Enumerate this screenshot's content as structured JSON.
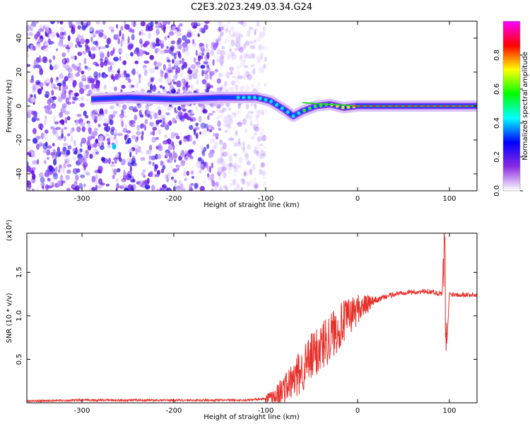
{
  "title": "C2E3.2023.249.03.34.G24",
  "chart_data": [
    {
      "type": "heatmap",
      "xlabel": "Height of straight line (km)",
      "ylabel": "Frequency (Hz)",
      "xlim": [
        -360,
        130
      ],
      "ylim": [
        -50,
        50
      ],
      "xticks": [
        -300,
        -200,
        -100,
        0,
        100
      ],
      "yticks": [
        -40,
        -20,
        0,
        20,
        40
      ],
      "colorbar": {
        "label": "Normalized spectral amplitude",
        "range": [
          0.0,
          1.0
        ],
        "ticks": [
          "0.0",
          "0.2",
          "0.4",
          "0.6",
          "0.8"
        ],
        "colors": [
          "#ffffff",
          "#8a2be2",
          "#0000ff",
          "#00ffff",
          "#00ff00",
          "#ffff00",
          "#ff0000",
          "#ff00ff"
        ]
      },
      "noise_field_extent": [
        -360,
        -110
      ],
      "signal_line": [
        {
          "x": -290,
          "y": 4
        },
        {
          "x": -250,
          "y": 5
        },
        {
          "x": -200,
          "y": 4
        },
        {
          "x": -150,
          "y": 5
        },
        {
          "x": -110,
          "y": 5
        },
        {
          "x": -95,
          "y": 3
        },
        {
          "x": -80,
          "y": -2
        },
        {
          "x": -70,
          "y": -6
        },
        {
          "x": -60,
          "y": -3
        },
        {
          "x": -45,
          "y": 0
        },
        {
          "x": -30,
          "y": 1
        },
        {
          "x": -15,
          "y": -1
        },
        {
          "x": 0,
          "y": 0
        },
        {
          "x": 50,
          "y": 0
        },
        {
          "x": 90,
          "y": 0
        },
        {
          "x": 130,
          "y": 0
        }
      ]
    },
    {
      "type": "line",
      "xlabel": "Height of straight line (km)",
      "ylabel": "SNR (10 * v/v)",
      "yscale_label": "(x10⁴)",
      "xlim": [
        -360,
        130
      ],
      "ylim": [
        0,
        1.95
      ],
      "xticks": [
        -300,
        -200,
        -100,
        0,
        100
      ],
      "yticks": [
        0.5,
        1.0,
        1.5
      ],
      "color": "#e8302a",
      "series": [
        {
          "values": [
            {
              "x": -360,
              "y": 0.02
            },
            {
              "x": -300,
              "y": 0.03
            },
            {
              "x": -200,
              "y": 0.03
            },
            {
              "x": -120,
              "y": 0.03
            },
            {
              "x": -100,
              "y": 0.05
            },
            {
              "x": -85,
              "y": 0.12
            },
            {
              "x": -70,
              "y": 0.25
            },
            {
              "x": -55,
              "y": 0.45
            },
            {
              "x": -40,
              "y": 0.65
            },
            {
              "x": -25,
              "y": 0.82
            },
            {
              "x": -10,
              "y": 0.98
            },
            {
              "x": 0,
              "y": 1.08
            },
            {
              "x": 15,
              "y": 1.15
            },
            {
              "x": 30,
              "y": 1.22
            },
            {
              "x": 50,
              "y": 1.27
            },
            {
              "x": 80,
              "y": 1.28
            },
            {
              "x": 92,
              "y": 1.25
            },
            {
              "x": 95,
              "y": 1.9
            },
            {
              "x": 96,
              "y": 0.46
            },
            {
              "x": 100,
              "y": 1.25
            },
            {
              "x": 130,
              "y": 1.24
            }
          ]
        }
      ]
    }
  ]
}
